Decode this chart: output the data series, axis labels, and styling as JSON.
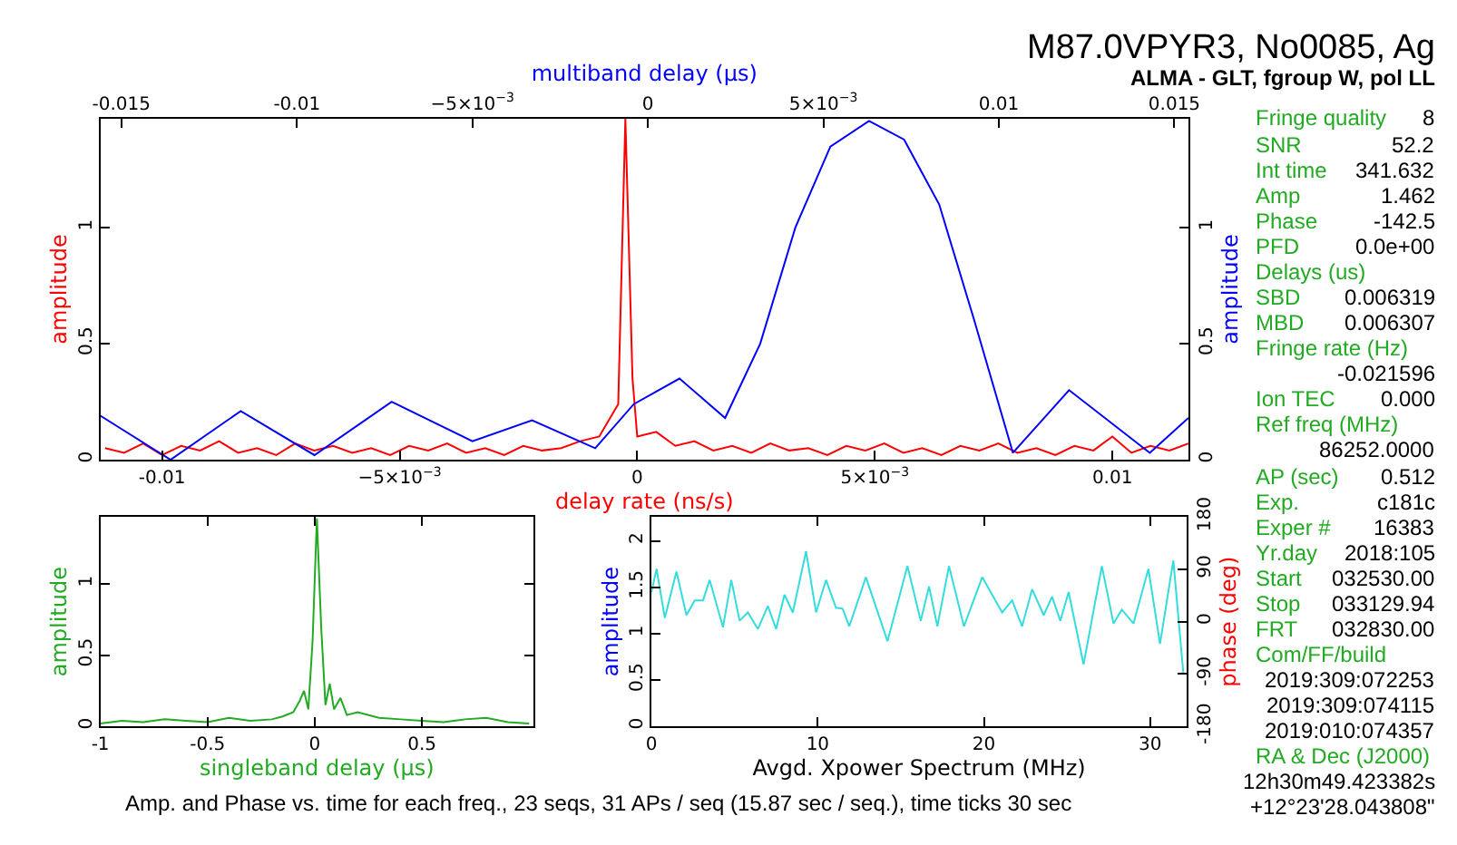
{
  "chart_data": [
    {
      "type": "line",
      "xlabel": "delay rate (ns/s)",
      "ylabel": "amplitude",
      "y2label": "amplitude",
      "x2label": "multiband delay (μs)",
      "xlim": [
        -0.0113,
        0.0116
      ],
      "xticks": [
        -0.01,
        {
          "value": -0.005,
          "label": "−5×10$^{−3}$"
        },
        0,
        {
          "value": 0.005,
          "label": "5×10$^{−3}$"
        },
        0.01
      ],
      "x2lim": [
        -0.0156,
        0.0154
      ],
      "x2ticks": [
        -0.015,
        -0.01,
        {
          "value": -0.005,
          "label": "−5×10$^{−3}$"
        },
        0,
        {
          "value": 0.005,
          "label": "5×10$^{−3}$"
        },
        0.01,
        0.015
      ],
      "ylim": [
        0,
        1.47
      ],
      "yticks": [
        0,
        0.5,
        1
      ],
      "y2lim": [
        0,
        1.47
      ],
      "y2ticks": [
        0,
        0.5,
        1
      ],
      "series": [
        {
          "color": "#ff0000",
          "x": [
            -0.0112,
            -0.0108,
            -0.0104,
            -0.01,
            -0.0096,
            -0.0092,
            -0.0088,
            -0.0084,
            -0.008,
            -0.0076,
            -0.0072,
            -0.0068,
            -0.0064,
            -0.006,
            -0.0056,
            -0.0052,
            -0.0048,
            -0.0044,
            -0.004,
            -0.0036,
            -0.0032,
            -0.0028,
            -0.0024,
            -0.002,
            -0.0016,
            -0.0012,
            -0.0008,
            -0.0004,
            -0.00025,
            -0.0001,
            0.0,
            0.0004,
            0.0008,
            0.0012,
            0.0016,
            0.002,
            0.0024,
            0.0028,
            0.0032,
            0.0036,
            0.004,
            0.0044,
            0.0048,
            0.0052,
            0.0056,
            0.006,
            0.0064,
            0.0068,
            0.0072,
            0.0076,
            0.008,
            0.0084,
            0.0088,
            0.0092,
            0.0096,
            0.01,
            0.0104,
            0.0108,
            0.0112,
            0.0116
          ],
          "values": [
            0.05,
            0.03,
            0.07,
            0.02,
            0.06,
            0.04,
            0.08,
            0.03,
            0.05,
            0.02,
            0.07,
            0.04,
            0.06,
            0.03,
            0.05,
            0.02,
            0.06,
            0.04,
            0.07,
            0.03,
            0.05,
            0.02,
            0.06,
            0.04,
            0.05,
            0.08,
            0.1,
            0.24,
            1.47,
            0.35,
            0.1,
            0.12,
            0.06,
            0.08,
            0.04,
            0.06,
            0.03,
            0.07,
            0.04,
            0.05,
            0.02,
            0.06,
            0.04,
            0.07,
            0.03,
            0.05,
            0.02,
            0.06,
            0.04,
            0.07,
            0.03,
            0.05,
            0.02,
            0.06,
            0.04,
            0.1,
            0.03,
            0.06,
            0.04,
            0.07
          ]
        },
        {
          "color": "#0000ff",
          "axis": "x2",
          "x": [
            -0.0156,
            -0.0136,
            -0.0116,
            -0.0095,
            -0.0073,
            -0.005,
            -0.0033,
            -0.0015,
            -0.0004,
            0.0009,
            0.0022,
            0.0032,
            0.0042,
            0.0052,
            0.0063,
            0.0073,
            0.0083,
            0.0093,
            0.0104,
            0.012,
            0.0143,
            0.0154
          ],
          "values": [
            0.19,
            0,
            0.21,
            0.02,
            0.25,
            0.08,
            0.17,
            0.05,
            0.24,
            0.35,
            0.18,
            0.5,
            1.0,
            1.35,
            1.46,
            1.38,
            1.1,
            0.6,
            0.03,
            0.3,
            0.03,
            0.18
          ]
        }
      ]
    },
    {
      "type": "line",
      "xlabel": "singleband delay (μs)",
      "ylabel": "amplitude",
      "xlim": [
        -1,
        1.02
      ],
      "xticks": [
        -1,
        -0.5,
        0,
        0.5
      ],
      "ylim": [
        0,
        1.47
      ],
      "yticks": [
        0,
        0.5,
        1
      ],
      "series": [
        {
          "color": "#22aa22",
          "x": [
            -1,
            -0.9,
            -0.8,
            -0.7,
            -0.6,
            -0.5,
            -0.4,
            -0.3,
            -0.2,
            -0.15,
            -0.1,
            -0.07,
            -0.05,
            -0.03,
            -0.01,
            0.01,
            0.03,
            0.05,
            0.07,
            0.09,
            0.12,
            0.15,
            0.2,
            0.3,
            0.4,
            0.5,
            0.6,
            0.7,
            0.8,
            0.9,
            1.0
          ],
          "values": [
            0.02,
            0.04,
            0.03,
            0.05,
            0.04,
            0.03,
            0.06,
            0.04,
            0.05,
            0.07,
            0.1,
            0.18,
            0.25,
            0.12,
            0.6,
            1.46,
            0.7,
            0.15,
            0.3,
            0.12,
            0.2,
            0.08,
            0.1,
            0.06,
            0.05,
            0.04,
            0.03,
            0.05,
            0.06,
            0.03,
            0.02
          ]
        }
      ]
    },
    {
      "type": "line",
      "xlabel": "Avgd. Xpower Spectrum (MHz)",
      "ylabel": "amplitude",
      "y2label": "phase (deg)",
      "xlim": [
        0,
        32.2
      ],
      "xticks": [
        0,
        10,
        20,
        30
      ],
      "ylim": [
        0,
        2.26
      ],
      "yticks": [
        0,
        0.5,
        1,
        1.5,
        2
      ],
      "y2lim": [
        -180,
        180
      ],
      "y2ticks": [
        -180,
        -90,
        0,
        90,
        180
      ],
      "series": [
        {
          "color": "#33dddd",
          "x": [
            0,
            0.3,
            0.8,
            1.5,
            2.1,
            2.6,
            3.1,
            3.5,
            4.3,
            4.8,
            5.3,
            5.8,
            6.4,
            7.0,
            7.5,
            8.0,
            8.5,
            9.3,
            9.9,
            10.5,
            11.1,
            11.5,
            11.9,
            12.9,
            14.2,
            15.4,
            16.2,
            16.7,
            17.2,
            17.9,
            18.8,
            19.9,
            21.1,
            21.7,
            22.3,
            22.9,
            23.6,
            24.1,
            24.6,
            25.1,
            26.0,
            27.1,
            27.8,
            28.3,
            29.0,
            29.9,
            30.6,
            31.4,
            32.0
          ],
          "values": [
            1.45,
            1.7,
            1.17,
            1.67,
            1.2,
            1.36,
            1.36,
            1.58,
            1.07,
            1.58,
            1.14,
            1.23,
            1.05,
            1.3,
            1.05,
            1.42,
            1.23,
            1.89,
            1.23,
            1.58,
            1.28,
            1.27,
            1.08,
            1.61,
            0.92,
            1.73,
            1.14,
            1.51,
            1.08,
            1.73,
            1.08,
            1.61,
            1.23,
            1.36,
            1.08,
            1.48,
            1.2,
            1.4,
            1.14,
            1.45,
            0.67,
            1.73,
            1.11,
            1.26,
            1.11,
            1.7,
            0.89,
            1.79,
            0.58
          ]
        }
      ]
    },
    {
      "type": "other",
      "title": "M87.0VPYR3, No0085, Ag",
      "subtitle": "ALMA - GLT, fgroup W, pol LL",
      "color": "#22aa22",
      "categories": [
        "Fringe quality",
        "SNR",
        "Int time",
        "Amp",
        "Phase",
        "PFD",
        "Delays (us)",
        "SBD",
        "MBD",
        "Fringe rate (Hz)",
        null,
        "Ion TEC",
        "Ref freq (MHz)",
        null,
        "AP (sec)",
        "Exp.",
        "Exper #",
        "Yr.day",
        "Start",
        "Stop",
        "FRT",
        "Com/FF/build",
        null,
        null,
        null,
        "RA & Dec (J2000)",
        null,
        null
      ],
      "value_labels": [
        "8",
        "52.2",
        "341.632",
        "1.462",
        "-142.5",
        "0.0e+00",
        null,
        "0.006319",
        "0.006307",
        null,
        "-0.021596",
        "0.000",
        null,
        "86252.0000",
        "0.512",
        "c181c",
        "16383",
        "2018:105",
        "032530.00",
        "033129.94",
        "032830.00",
        null,
        "2019:309:072253",
        "2019:309:074115",
        "2019:010:074357",
        null,
        "12h30m49.423382s",
        "+12°23'28.043808\""
      ],
      "annotations": [
        "Amp. and Phase vs. time for each freq., 23 seqs, 31 APs / seq (15.87 sec / seq.), time ticks 30 sec"
      ]
    }
  ]
}
